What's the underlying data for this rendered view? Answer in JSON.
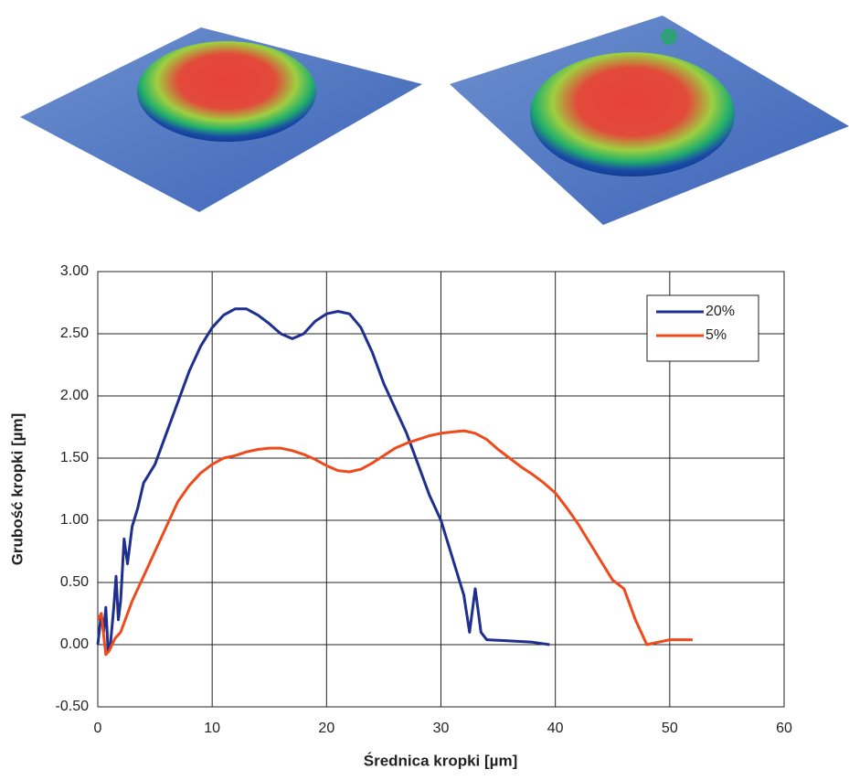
{
  "chart_data": {
    "type": "line",
    "xlabel": "Średnica kropki [µm]",
    "ylabel": "Grubość kropki [µm]",
    "xlim": [
      0,
      60
    ],
    "xticks": [
      0,
      10,
      20,
      30,
      40,
      50,
      60
    ],
    "ylim": [
      -0.5,
      3
    ],
    "yticks": [
      {
        "value": -0.5,
        "label": "-0.50"
      },
      {
        "value": 0,
        "label": "0.00"
      },
      {
        "value": 0.5,
        "label": "0.50"
      },
      {
        "value": 1,
        "label": "1.00"
      },
      {
        "value": 1.5,
        "label": "1.50"
      },
      {
        "value": 2,
        "label": "2.00"
      },
      {
        "value": 2.5,
        "label": "2.50"
      },
      {
        "value": 3,
        "label": "3.00"
      }
    ],
    "grid": true,
    "legend": "upper right",
    "series": [
      {
        "name": "20%",
        "color": "#1f2f8f",
        "x": [
          0,
          0.3,
          0.5,
          0.7,
          0.9,
          1.1,
          1.4,
          1.6,
          1.8,
          2.0,
          2.3,
          2.6,
          3,
          3.5,
          4,
          5,
          6,
          7,
          8,
          9,
          10,
          11,
          12,
          13,
          14,
          15,
          16,
          17,
          18,
          19,
          20,
          21,
          22,
          23,
          24,
          25,
          26,
          27,
          28,
          29,
          30,
          31,
          32,
          32.5,
          33,
          33.5,
          34,
          36,
          38,
          39.5
        ],
        "values": [
          0,
          0.25,
          0.1,
          0.3,
          -0.05,
          0,
          0.3,
          0.55,
          0.2,
          0.35,
          0.85,
          0.65,
          0.95,
          1.1,
          1.3,
          1.45,
          1.7,
          1.95,
          2.2,
          2.4,
          2.55,
          2.65,
          2.7,
          2.7,
          2.65,
          2.58,
          2.5,
          2.46,
          2.5,
          2.6,
          2.66,
          2.68,
          2.66,
          2.55,
          2.35,
          2.1,
          1.9,
          1.7,
          1.45,
          1.2,
          1.0,
          0.7,
          0.4,
          0.1,
          0.45,
          0.1,
          0.04,
          0.03,
          0.02,
          0
        ]
      },
      {
        "name": "5%",
        "color": "#ef4a1c",
        "x": [
          0,
          0.3,
          0.7,
          1,
          1.5,
          2,
          3,
          4,
          5,
          6,
          7,
          8,
          9,
          10,
          11,
          12,
          13,
          14,
          15,
          16,
          17,
          18,
          19,
          20,
          21,
          22,
          23,
          24,
          25,
          26,
          27,
          28,
          29,
          30,
          31,
          32,
          33,
          34,
          35,
          36,
          37,
          38,
          39,
          40,
          41,
          42,
          43,
          44,
          45,
          46,
          47,
          48,
          48.5,
          49,
          50,
          52
        ],
        "values": [
          0.2,
          0.25,
          -0.08,
          -0.05,
          0.05,
          0.1,
          0.35,
          0.55,
          0.75,
          0.95,
          1.15,
          1.28,
          1.38,
          1.45,
          1.5,
          1.52,
          1.55,
          1.57,
          1.58,
          1.58,
          1.56,
          1.53,
          1.49,
          1.44,
          1.4,
          1.39,
          1.41,
          1.46,
          1.52,
          1.58,
          1.62,
          1.65,
          1.68,
          1.7,
          1.71,
          1.72,
          1.7,
          1.65,
          1.57,
          1.5,
          1.43,
          1.37,
          1.3,
          1.22,
          1.1,
          0.97,
          0.82,
          0.67,
          0.52,
          0.45,
          0.2,
          0,
          0.01,
          0.02,
          0.04,
          0.04
        ]
      }
    ]
  }
}
